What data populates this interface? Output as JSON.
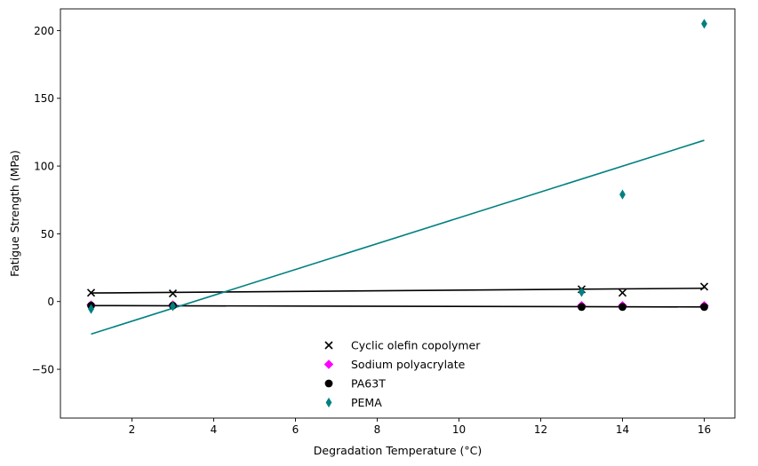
{
  "chart_data": {
    "type": "scatter",
    "title": "",
    "xlabel": "Degradation Temperature (°C)",
    "ylabel": "Fatigue Strength (MPa)",
    "xlim": [
      0.25,
      16.75
    ],
    "ylim": [
      -86,
      216
    ],
    "xticks": [
      2,
      4,
      6,
      8,
      10,
      12,
      14,
      16
    ],
    "yticks": [
      -50,
      0,
      50,
      100,
      150,
      200
    ],
    "grid": false,
    "legend_position": "bottom-center",
    "series": [
      {
        "name": "Cyclic olefin copolymer",
        "marker": "x",
        "color": "#000000",
        "x": [
          1,
          3,
          13,
          14,
          16
        ],
        "y": [
          6.5,
          6,
          9,
          6.5,
          11
        ],
        "fit": {
          "x": [
            1,
            16
          ],
          "y": [
            6.3,
            9.8
          ],
          "color": "#000000"
        }
      },
      {
        "name": "Sodium polyacrylate",
        "marker": "diamond",
        "color": "#ff00ff",
        "x": [
          1,
          3,
          13,
          14,
          16
        ],
        "y": [
          -2.5,
          -2.5,
          -3,
          -3,
          -3
        ]
      },
      {
        "name": "PA63T",
        "marker": "circle",
        "color": "#000000",
        "x": [
          1,
          3,
          13,
          14,
          16
        ],
        "y": [
          -3,
          -3,
          -4,
          -4,
          -4
        ],
        "fit": {
          "x": [
            1,
            16
          ],
          "y": [
            -3,
            -4
          ],
          "color": "#000000"
        }
      },
      {
        "name": "PEMA",
        "marker": "thin_diamond",
        "color": "#008080",
        "x": [
          1,
          3,
          13,
          14,
          16
        ],
        "y": [
          -5.5,
          -3.5,
          7,
          79,
          205
        ],
        "fit": {
          "x": [
            1,
            16
          ],
          "y": [
            -24,
            119
          ],
          "color": "#008080"
        }
      }
    ]
  }
}
